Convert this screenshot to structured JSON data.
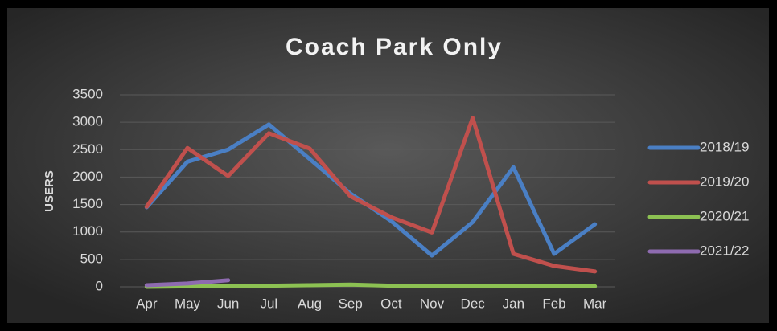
{
  "chart_data": {
    "type": "line",
    "title": "Coach Park Only",
    "y_label": "USERS",
    "categories": [
      "Apr",
      "May",
      "Jun",
      "Jul",
      "Aug",
      "Sep",
      "Oct",
      "Nov",
      "Dec",
      "Jan",
      "Feb",
      "Mar"
    ],
    "series": [
      {
        "name": "2018/19",
        "color": "#4a7fc4",
        "values": [
          1450,
          2280,
          2500,
          2960,
          2330,
          1700,
          1200,
          570,
          1180,
          2180,
          600,
          1140
        ]
      },
      {
        "name": "2019/20",
        "color": "#c0504d",
        "values": [
          1460,
          2530,
          2020,
          2800,
          2520,
          1650,
          1270,
          990,
          3080,
          600,
          380,
          280
        ]
      },
      {
        "name": "2020/21",
        "color": "#8cc152",
        "values": [
          0,
          10,
          20,
          20,
          30,
          40,
          20,
          10,
          20,
          10,
          10,
          10
        ]
      },
      {
        "name": "2021/22",
        "color": "#8e6bb0",
        "values": [
          30,
          60,
          120,
          null,
          null,
          null,
          null,
          null,
          null,
          null,
          null,
          null
        ]
      }
    ],
    "ylim": [
      0,
      3500
    ],
    "yticks": [
      0,
      500,
      1000,
      1500,
      2000,
      2500,
      3000,
      3500
    ],
    "grid": true,
    "legend": "right"
  }
}
